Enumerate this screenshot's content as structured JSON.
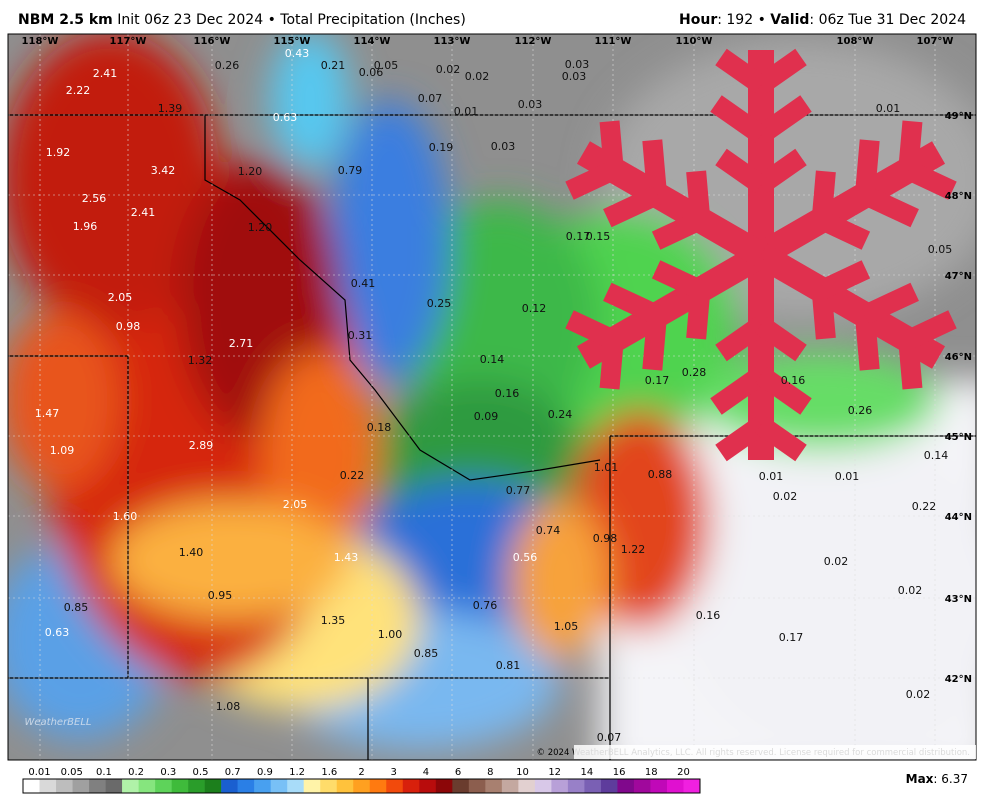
{
  "header": {
    "model": "NBM 2.5 km",
    "info": "Init 06z 23 Dec 2024 • Total Precipitation (Inches)",
    "hour_label": "Hour",
    "hour": ": 192 • ",
    "valid_label": "Valid",
    "valid": ": 06z Tue 31 Dec 2024"
  },
  "longitudes": [
    "118°W",
    "117°W",
    "116°W",
    "115°W",
    "114°W",
    "113°W",
    "112°W",
    "111°W",
    "110°W",
    "108°W",
    "107°W"
  ],
  "latitudes": [
    "49°N",
    "48°N",
    "47°N",
    "46°N",
    "45°N",
    "44°N",
    "43°N",
    "42°N"
  ],
  "map_labels": [
    "2.41",
    "2.22",
    "1.92",
    "2.56",
    "1.96",
    "2.41",
    "3.42",
    "1.39",
    "0.26",
    "0.43",
    "0.21",
    "0.06",
    "0.05",
    "0.02",
    "0.02",
    "0.03",
    "0.03",
    "0.07",
    "0.01",
    "0.03",
    "0.63",
    "1.20",
    "1.20",
    "0.79",
    "0.19",
    "0.03",
    "2.05",
    "0.98",
    "1.32",
    "2.71",
    "0.41",
    "0.25",
    "0.12",
    "0.31",
    "0.14",
    "0.16",
    "0.09",
    "0.24",
    "0.18",
    "0.17",
    "0.28",
    "0.16",
    "0.26",
    "1.47",
    "1.09",
    "2.89",
    "2.05",
    "1.60",
    "0.22",
    "0.77",
    "1.01",
    "0.88",
    "0.74",
    "0.98",
    "1.22",
    "0.56",
    "1.40",
    "1.43",
    "0.95",
    "0.85",
    "0.63",
    "1.35",
    "1.00",
    "0.76",
    "1.05",
    "0.85",
    "0.81",
    "1.08",
    "0.07",
    "0.16",
    "0.17",
    "0.02",
    "0.02",
    "0.02",
    "0.22",
    "0.14",
    "0.01",
    "0.02",
    "0.01",
    "0.05",
    "0.01",
    "0.17",
    "0.15"
  ],
  "watermark": "WeatherBELL",
  "copyright": "© 2024 WeatherBELL Analytics, LLC. All rights reserved. License required for commercial distribution.",
  "legend": {
    "labels": [
      "0.01",
      "0.05",
      "0.1",
      "0.2",
      "0.3",
      "0.5",
      "0.7",
      "0.9",
      "1.2",
      "1.6",
      "2",
      "3",
      "4",
      "6",
      "8",
      "10",
      "12",
      "14",
      "16",
      "18",
      "20"
    ]
  },
  "max": {
    "label": "Max",
    "value": ": 6.37"
  }
}
